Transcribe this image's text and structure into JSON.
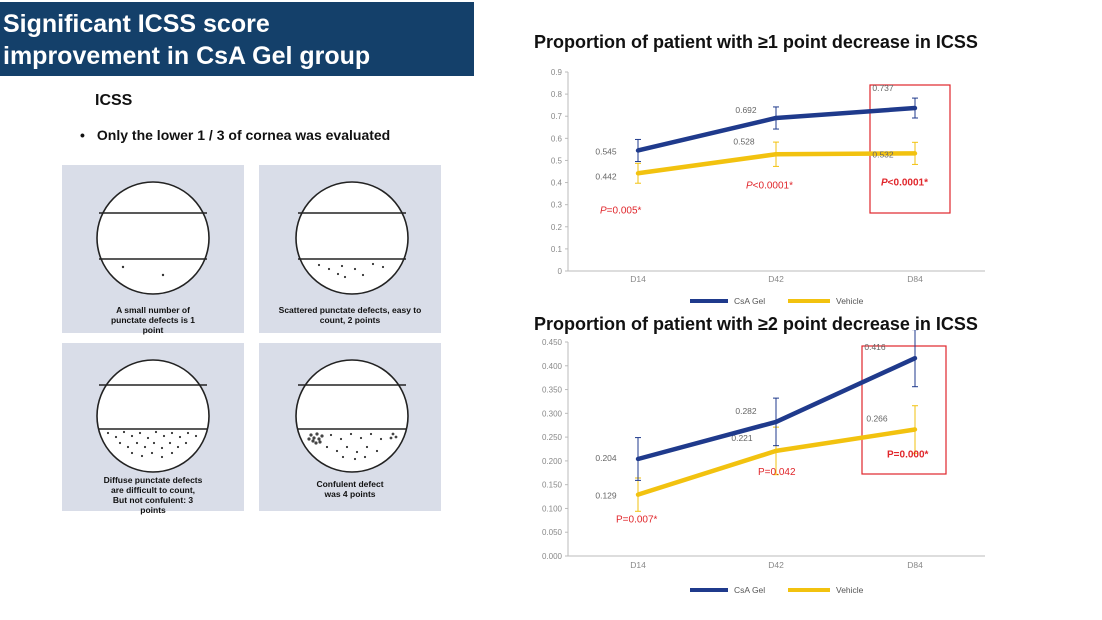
{
  "header": {
    "title_line1": "Significant ICSS score",
    "title_line2": "improvement in CsA Gel group"
  },
  "left": {
    "heading": "ICSS",
    "bullet": "Only the lower 1 / 3 of cornea was evaluated",
    "panels": [
      {
        "caption_lines": [
          "A small number of",
          "punctate defects is 1",
          "point"
        ]
      },
      {
        "caption_lines": [
          "Scattered punctate defects, easy to",
          "count, 2 points"
        ]
      },
      {
        "caption_lines": [
          "Diffuse punctate defects",
          "are difficult to count,",
          "But not confulent: 3",
          "points"
        ]
      },
      {
        "caption_lines": [
          "Confulent defect",
          "was 4 points"
        ]
      }
    ]
  },
  "colors": {
    "csa": "#1f3a8c",
    "vehicle": "#f2c20f",
    "pvalue": "#e0262b",
    "box": "#e0262b"
  },
  "chart_data": [
    {
      "type": "line",
      "title": "Proportion of patient with ≥1 point decrease in ICSS",
      "categories": [
        "D14",
        "D42",
        "D84"
      ],
      "ylim": [
        0,
        0.9
      ],
      "yticks": [
        "0",
        "0.1",
        "0.2",
        "0.3",
        "0.4",
        "0.5",
        "0.6",
        "0.7",
        "0.8",
        "0.9"
      ],
      "series": [
        {
          "name": "CsA Gel",
          "values": [
            0.545,
            0.692,
            0.737
          ],
          "labels": [
            "0.545",
            "0.692",
            "0.737"
          ],
          "err": [
            0.05,
            0.05,
            0.045
          ]
        },
        {
          "name": "Vehicle",
          "values": [
            0.442,
            0.528,
            0.532
          ],
          "labels": [
            "0.442",
            "0.528",
            "0.532"
          ],
          "err": [
            0.045,
            0.055,
            0.05
          ]
        }
      ],
      "pvalues": [
        {
          "text": "P=0.005*",
          "italic_p": true,
          "bold": false
        },
        {
          "text": "P<0.0001*",
          "italic_p": true,
          "bold": false
        },
        {
          "text": "P<0.0001*",
          "italic_p": true,
          "bold": true
        }
      ],
      "highlight_category": "D84",
      "legend": "bottom-center"
    },
    {
      "type": "line",
      "title": "Proportion of patient with ≥2 point decrease in ICSS",
      "categories": [
        "D14",
        "D42",
        "D84"
      ],
      "ylim": [
        0,
        0.45
      ],
      "yticks": [
        "0.000",
        "0.050",
        "0.100",
        "0.150",
        "0.200",
        "0.250",
        "0.300",
        "0.350",
        "0.400",
        "0.450"
      ],
      "series": [
        {
          "name": "CsA Gel",
          "values": [
            0.204,
            0.282,
            0.416
          ],
          "labels": [
            "0.204",
            "0.282",
            "0.416"
          ],
          "err": [
            0.045,
            0.05,
            0.06
          ]
        },
        {
          "name": "Vehicle",
          "values": [
            0.129,
            0.221,
            0.266
          ],
          "labels": [
            "0.129",
            "0.221",
            "0.266"
          ],
          "err": [
            0.035,
            0.05,
            0.05
          ]
        }
      ],
      "pvalues": [
        {
          "text": "P=0.007*",
          "italic_p": false,
          "bold": false
        },
        {
          "text": "P=0.042",
          "italic_p": false,
          "bold": false
        },
        {
          "text": "P=0.000*",
          "italic_p": false,
          "bold": true
        }
      ],
      "highlight_category": "D84",
      "legend": "bottom-center"
    }
  ]
}
